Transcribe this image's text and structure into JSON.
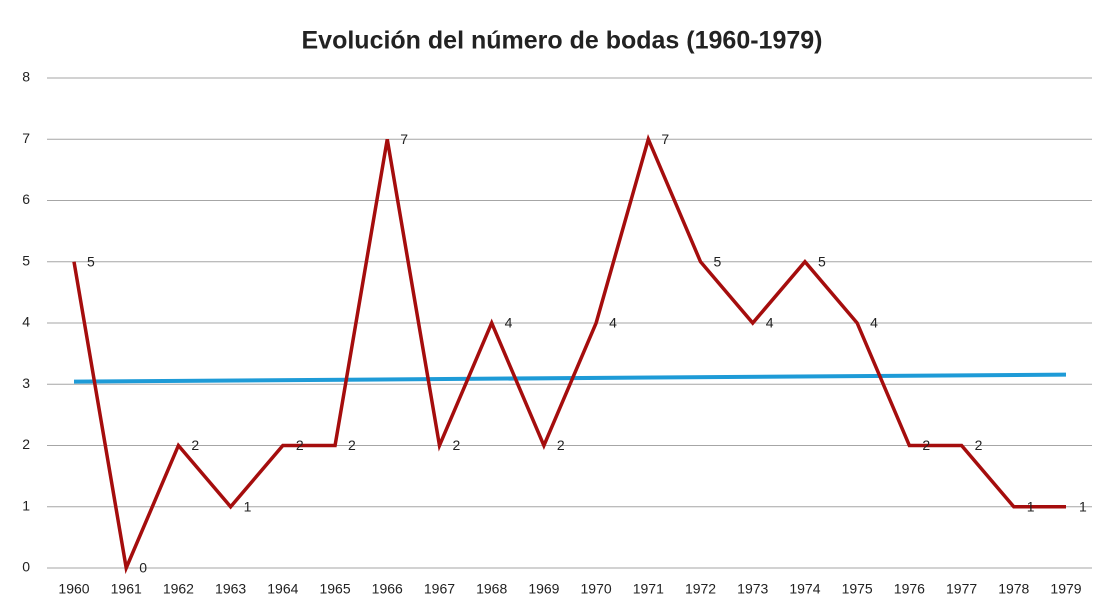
{
  "chart_data": {
    "type": "line",
    "title": "Evolución del número de bodas (1960-1979)",
    "categories": [
      "1960",
      "1961",
      "1962",
      "1963",
      "1964",
      "1965",
      "1966",
      "1967",
      "1968",
      "1969",
      "1970",
      "1971",
      "1972",
      "1973",
      "1974",
      "1975",
      "1976",
      "1977",
      "1978",
      "1979"
    ],
    "values": [
      5,
      0,
      2,
      1,
      2,
      2,
      7,
      2,
      4,
      2,
      4,
      7,
      5,
      4,
      5,
      4,
      2,
      2,
      1,
      1
    ],
    "color": "#a50d0d",
    "ylim": [
      0,
      8
    ],
    "yticks": [
      0,
      1,
      2,
      3,
      4,
      5,
      6,
      7,
      8
    ],
    "grid": true,
    "data_labels": true,
    "trendline": "linear",
    "trendline_color": "#1e9bd7"
  }
}
